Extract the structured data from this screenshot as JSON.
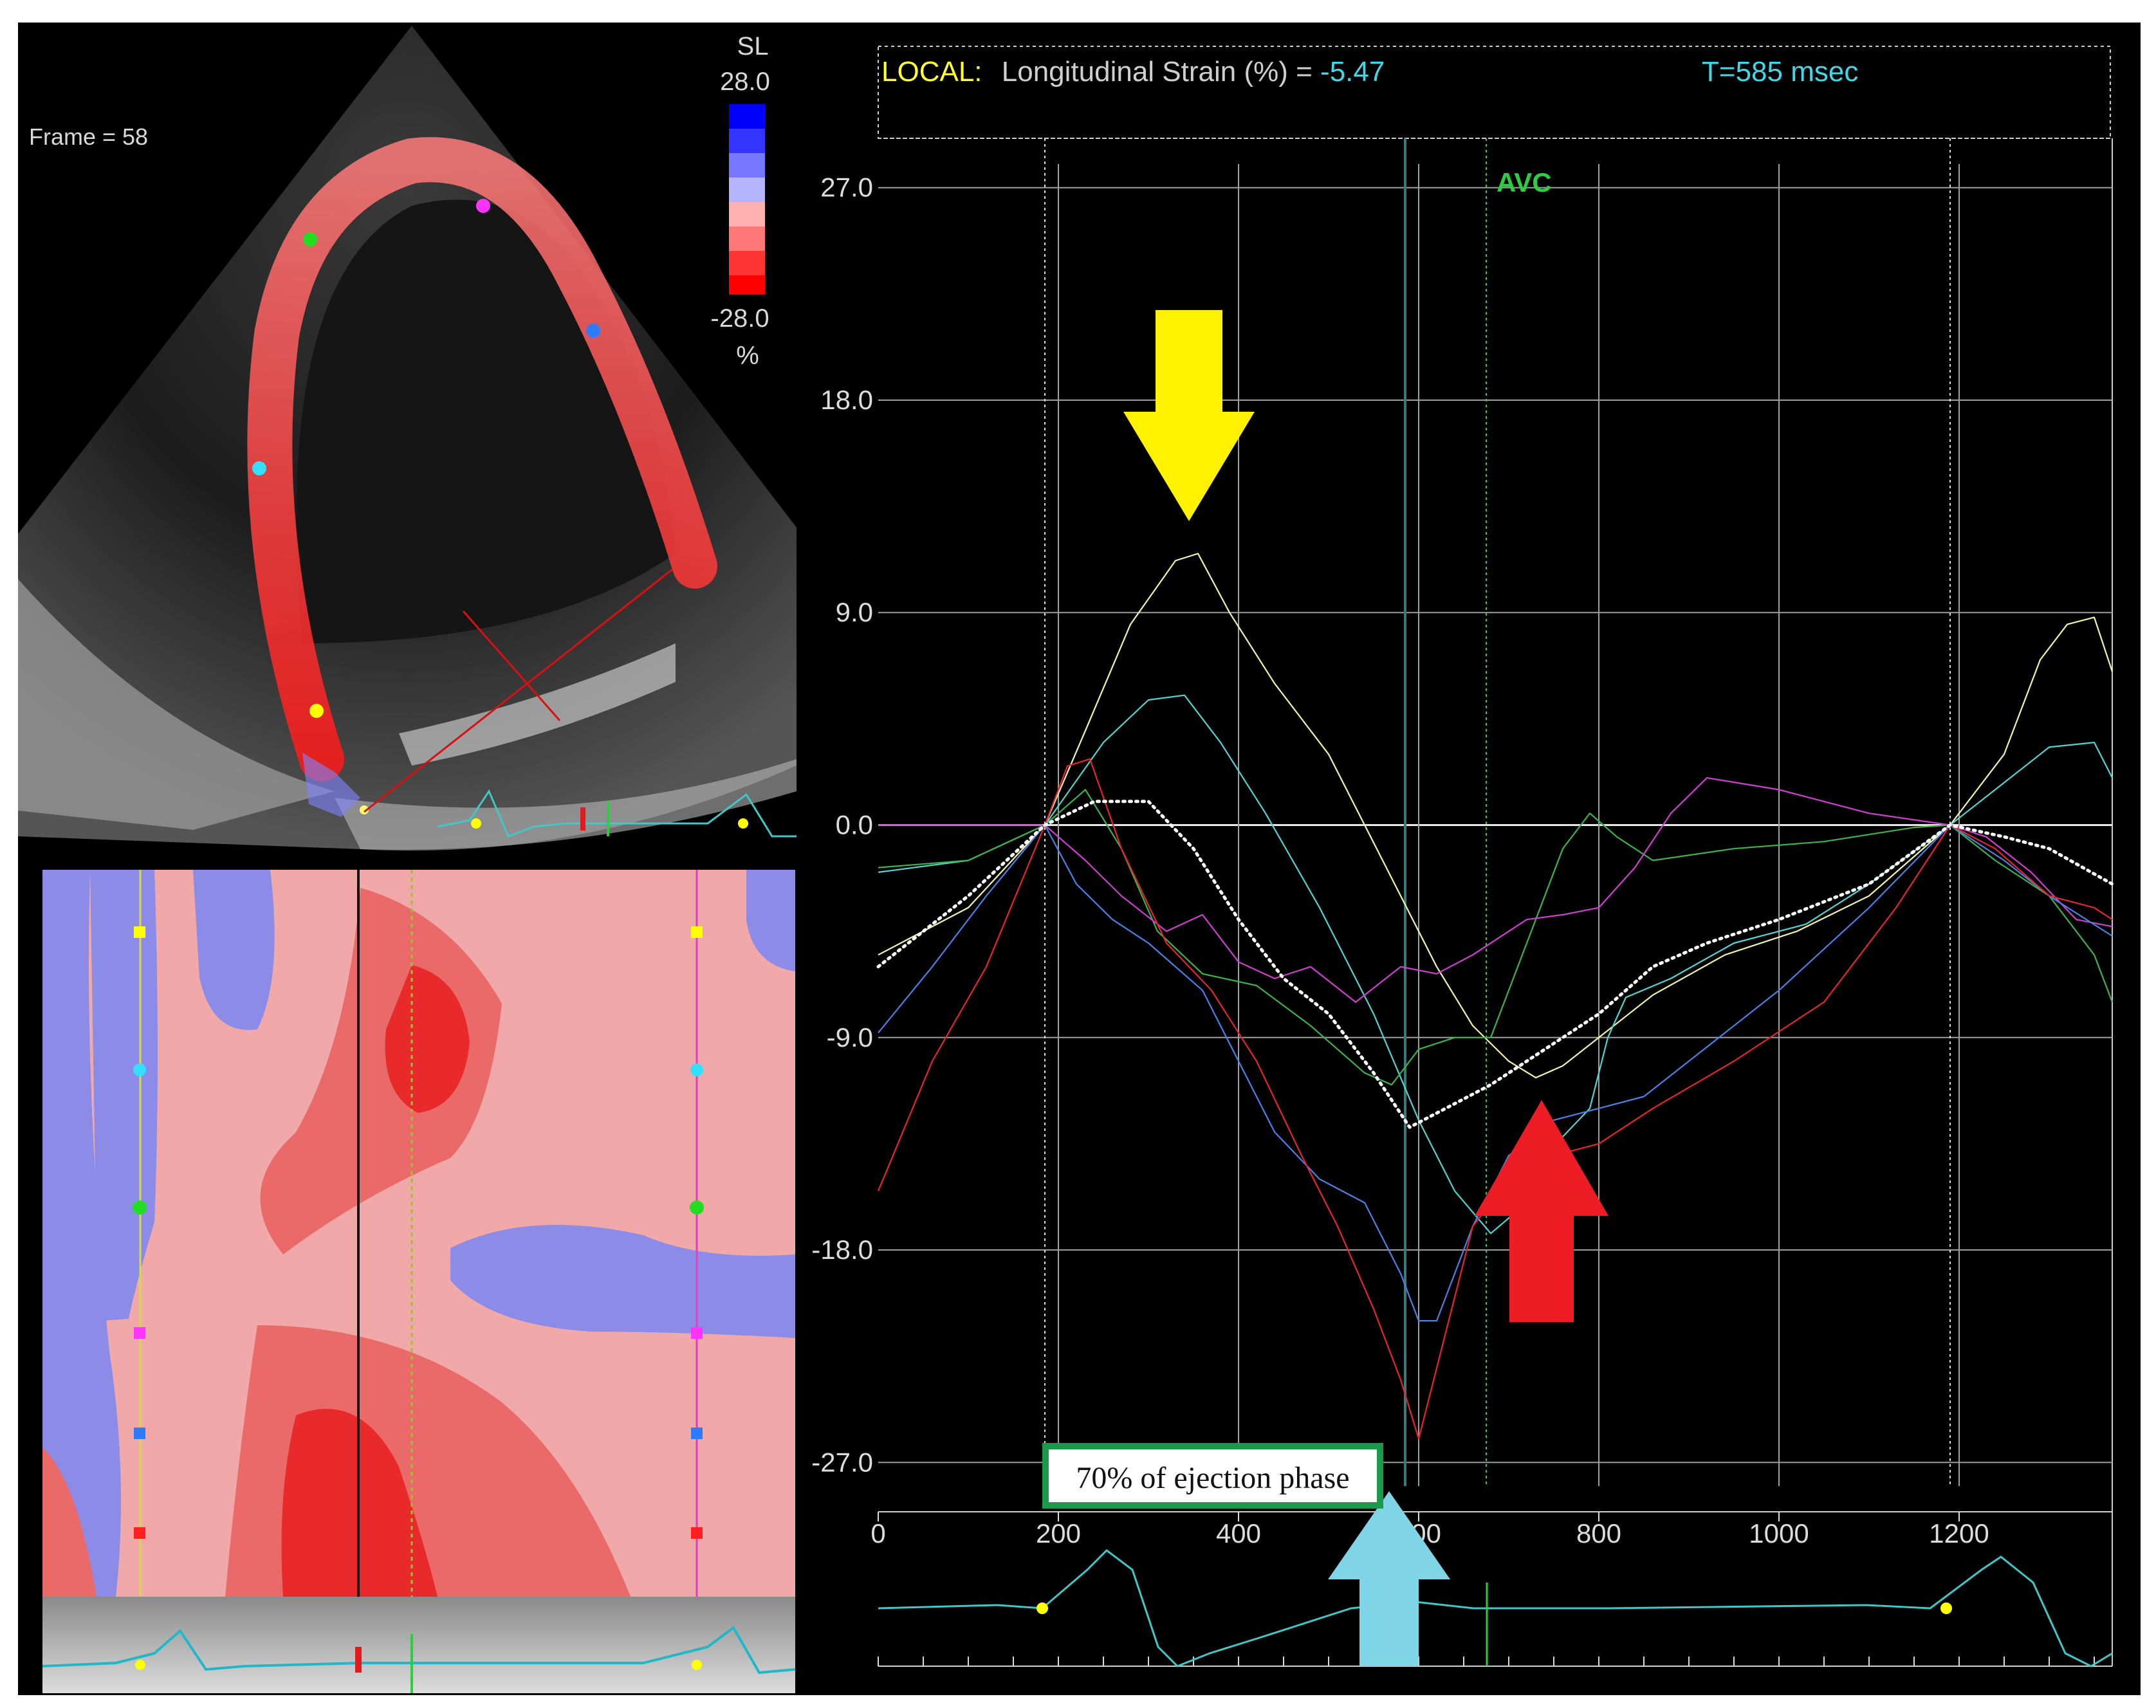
{
  "echo": {
    "frame_label": "Frame = 58",
    "colorbar_title": "SL",
    "colorbar_max": "28.0",
    "colorbar_min": "-28.0",
    "colorbar_unit": "%"
  },
  "header": {
    "prefix": "LOCAL:",
    "measure": "Longitudinal Strain (%) =",
    "value": "-5.47",
    "time": "T=585 msec"
  },
  "marker_label": "AVC",
  "callout_label": "70% of ejection phase",
  "colors": {
    "yellow_arrow": "#fff200",
    "red_arrow": "#ee1c24",
    "cyan_arrow": "#7fd4e6",
    "callout_border": "#1a9a4a",
    "grid": "#bdbdbd",
    "ecg": "#40c8c8"
  },
  "chart_data": {
    "type": "line",
    "x_ticks": [
      "0",
      "200",
      "400",
      "600",
      "800",
      "1000",
      "1200"
    ],
    "y_ticks": [
      "27.0",
      "18.0",
      "9.0",
      "0.0",
      "-9.0",
      "-18.0",
      "-27.0"
    ],
    "xlim": [
      0,
      1370
    ],
    "ylim": [
      -28,
      28
    ],
    "grid": true,
    "vertical_markers": [
      {
        "x": 185,
        "style": "white-dotted"
      },
      {
        "x": 585,
        "style": "current-time"
      },
      {
        "x": 675,
        "style": "green-dotted",
        "label": "AVC"
      },
      {
        "x": 1190,
        "style": "white-dotted"
      }
    ],
    "series": [
      {
        "color": "#f5f5aa",
        "width": 2.2,
        "dash": null,
        "points": [
          [
            0,
            -5.5
          ],
          [
            100,
            -3.5
          ],
          [
            185,
            0
          ],
          [
            230,
            4
          ],
          [
            280,
            8.5
          ],
          [
            330,
            11.2
          ],
          [
            355,
            11.5
          ],
          [
            390,
            9
          ],
          [
            440,
            6
          ],
          [
            500,
            3
          ],
          [
            560,
            -1.5
          ],
          [
            620,
            -6
          ],
          [
            660,
            -8.5
          ],
          [
            700,
            -10
          ],
          [
            730,
            -10.7
          ],
          [
            760,
            -10.2
          ],
          [
            800,
            -9
          ],
          [
            860,
            -7.2
          ],
          [
            940,
            -5.5
          ],
          [
            1020,
            -4.5
          ],
          [
            1100,
            -3
          ],
          [
            1190,
            0
          ],
          [
            1250,
            3
          ],
          [
            1290,
            7
          ],
          [
            1320,
            8.5
          ],
          [
            1350,
            8.8
          ],
          [
            1370,
            6.5
          ]
        ]
      },
      {
        "color": "#4fd6d6",
        "width": 2.2,
        "dash": null,
        "points": [
          [
            0,
            -2
          ],
          [
            100,
            -1.5
          ],
          [
            185,
            0
          ],
          [
            250,
            3.5
          ],
          [
            300,
            5.3
          ],
          [
            340,
            5.5
          ],
          [
            380,
            3.5
          ],
          [
            430,
            0.5
          ],
          [
            490,
            -3.5
          ],
          [
            550,
            -8
          ],
          [
            600,
            -12.5
          ],
          [
            640,
            -15.5
          ],
          [
            680,
            -17.3
          ],
          [
            720,
            -16
          ],
          [
            760,
            -13.2
          ],
          [
            790,
            -12
          ],
          [
            810,
            -9
          ],
          [
            830,
            -7.3
          ],
          [
            880,
            -6.5
          ],
          [
            950,
            -5
          ],
          [
            1030,
            -4.2
          ],
          [
            1100,
            -2.5
          ],
          [
            1190,
            0
          ],
          [
            1240,
            1.5
          ],
          [
            1300,
            3.3
          ],
          [
            1350,
            3.5
          ],
          [
            1370,
            2
          ]
        ]
      },
      {
        "color": "#3cb44b",
        "width": 2.2,
        "dash": null,
        "points": [
          [
            0,
            -1.8
          ],
          [
            100,
            -1.5
          ],
          [
            185,
            0
          ],
          [
            230,
            1.5
          ],
          [
            270,
            -1
          ],
          [
            310,
            -4.5
          ],
          [
            360,
            -6.3
          ],
          [
            420,
            -6.8
          ],
          [
            480,
            -8.5
          ],
          [
            540,
            -10.5
          ],
          [
            570,
            -11
          ],
          [
            600,
            -9.5
          ],
          [
            640,
            -9
          ],
          [
            680,
            -9
          ],
          [
            720,
            -5
          ],
          [
            760,
            -1
          ],
          [
            790,
            0.5
          ],
          [
            820,
            -0.5
          ],
          [
            860,
            -1.5
          ],
          [
            950,
            -1
          ],
          [
            1050,
            -0.7
          ],
          [
            1150,
            -0.1
          ],
          [
            1190,
            0
          ],
          [
            1240,
            -1.5
          ],
          [
            1300,
            -3
          ],
          [
            1350,
            -5.5
          ],
          [
            1370,
            -7.5
          ]
        ]
      },
      {
        "color": "#d23ed2",
        "width": 2.2,
        "dash": null,
        "points": [
          [
            0,
            0
          ],
          [
            100,
            0
          ],
          [
            185,
            0
          ],
          [
            230,
            -1.5
          ],
          [
            270,
            -3
          ],
          [
            320,
            -4.5
          ],
          [
            360,
            -3.8
          ],
          [
            400,
            -5.8
          ],
          [
            440,
            -6.5
          ],
          [
            480,
            -6
          ],
          [
            530,
            -7.5
          ],
          [
            580,
            -6
          ],
          [
            620,
            -6.3
          ],
          [
            660,
            -5.5
          ],
          [
            720,
            -4
          ],
          [
            760,
            -3.8
          ],
          [
            800,
            -3.5
          ],
          [
            840,
            -1.8
          ],
          [
            880,
            0.5
          ],
          [
            920,
            2
          ],
          [
            1000,
            1.5
          ],
          [
            1100,
            0.5
          ],
          [
            1190,
            0
          ],
          [
            1230,
            -0.5
          ],
          [
            1280,
            -2
          ],
          [
            1330,
            -4
          ],
          [
            1370,
            -4.3
          ]
        ]
      },
      {
        "color": "#4a82e8",
        "width": 2.2,
        "dash": null,
        "points": [
          [
            0,
            -8.8
          ],
          [
            60,
            -6
          ],
          [
            120,
            -3
          ],
          [
            185,
            0
          ],
          [
            220,
            -2.5
          ],
          [
            260,
            -4
          ],
          [
            300,
            -5
          ],
          [
            360,
            -7
          ],
          [
            400,
            -10
          ],
          [
            440,
            -13
          ],
          [
            490,
            -15
          ],
          [
            540,
            -16
          ],
          [
            580,
            -19
          ],
          [
            600,
            -21
          ],
          [
            620,
            -21
          ],
          [
            660,
            -17
          ],
          [
            700,
            -14
          ],
          [
            750,
            -12.5
          ],
          [
            800,
            -12
          ],
          [
            850,
            -11.5
          ],
          [
            900,
            -10
          ],
          [
            1000,
            -7
          ],
          [
            1100,
            -3.5
          ],
          [
            1190,
            0
          ],
          [
            1250,
            -1.5
          ],
          [
            1300,
            -3
          ],
          [
            1370,
            -4.7
          ]
        ]
      },
      {
        "color": "#e8252d",
        "width": 2.2,
        "dash": null,
        "points": [
          [
            0,
            -15.5
          ],
          [
            60,
            -10
          ],
          [
            120,
            -6
          ],
          [
            185,
            0
          ],
          [
            210,
            2.5
          ],
          [
            235,
            2.8
          ],
          [
            270,
            -1
          ],
          [
            320,
            -5
          ],
          [
            370,
            -7
          ],
          [
            420,
            -10
          ],
          [
            470,
            -14
          ],
          [
            510,
            -17
          ],
          [
            550,
            -20.5
          ],
          [
            580,
            -23.5
          ],
          [
            600,
            -26
          ],
          [
            630,
            -21.5
          ],
          [
            660,
            -17
          ],
          [
            700,
            -15
          ],
          [
            750,
            -14
          ],
          [
            800,
            -13.5
          ],
          [
            860,
            -12
          ],
          [
            950,
            -10
          ],
          [
            1050,
            -7.5
          ],
          [
            1130,
            -3.5
          ],
          [
            1190,
            0
          ],
          [
            1240,
            -1
          ],
          [
            1300,
            -3
          ],
          [
            1350,
            -3.5
          ],
          [
            1370,
            -4
          ]
        ]
      },
      {
        "color": "#ffffff",
        "width": 5,
        "dash": "3 7",
        "points": [
          [
            0,
            -6
          ],
          [
            100,
            -3
          ],
          [
            185,
            0
          ],
          [
            240,
            1
          ],
          [
            300,
            1
          ],
          [
            350,
            -1
          ],
          [
            400,
            -4
          ],
          [
            450,
            -6.5
          ],
          [
            500,
            -8
          ],
          [
            550,
            -10.5
          ],
          [
            590,
            -12.8
          ],
          [
            630,
            -12
          ],
          [
            680,
            -11
          ],
          [
            720,
            -10
          ],
          [
            760,
            -9
          ],
          [
            800,
            -8
          ],
          [
            860,
            -6
          ],
          [
            920,
            -5
          ],
          [
            1000,
            -4
          ],
          [
            1100,
            -2.5
          ],
          [
            1190,
            0
          ],
          [
            1250,
            -0.5
          ],
          [
            1300,
            -1
          ],
          [
            1370,
            -2.5
          ]
        ]
      }
    ]
  }
}
